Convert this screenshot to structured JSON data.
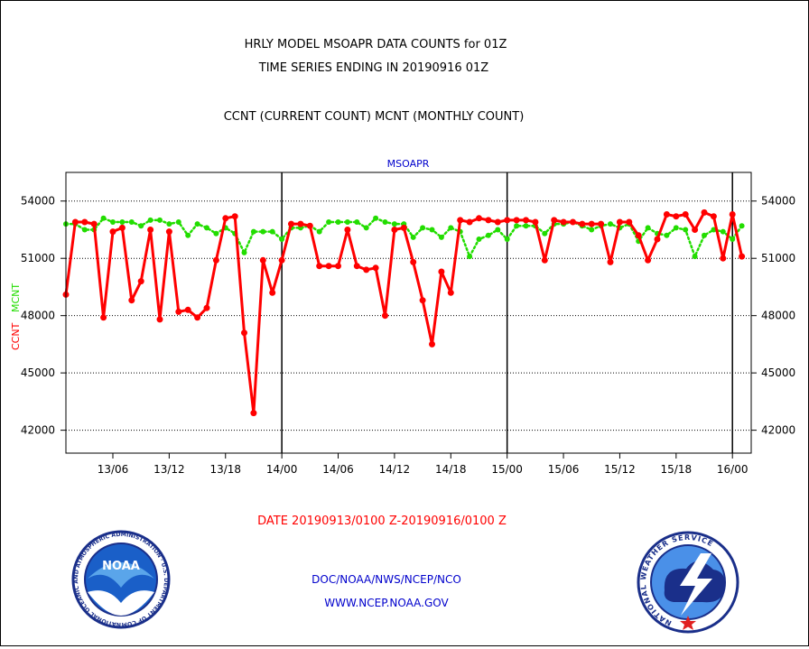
{
  "header": {
    "line1": "HRLY MODEL MSOAPR DATA COUNTS for 01Z",
    "line2": "TIME SERIES ENDING IN 20190916 01Z",
    "line3": "CCNT (CURRENT COUNT) MCNT (MONTHLY COUNT)"
  },
  "footer": {
    "date_range": "DATE 20190913/0100 Z-20190916/0100 Z",
    "org": "DOC/NOAA/NWS/NCEP/NCO",
    "url": "WWW.NCEP.NOAA.GOV"
  },
  "logos": {
    "left_text": "NOAA",
    "left_ring": "NATIONAL OCEANIC AND ATMOSPHERIC ADMINISTRATION · U.S. DEPARTMENT OF COMMERCE ·",
    "right_ring": "NATIONAL WEATHER SERVICE"
  },
  "colors": {
    "ccnt": "#ff0000",
    "mcnt": "#22dd00",
    "axis": "#000000",
    "title": "#0000cc",
    "footer": "#0000cc",
    "date": "#ff0000"
  },
  "chart_data": {
    "type": "line",
    "title": "MSOAPR",
    "ylabel_left_red": "CCNT",
    "ylabel_left_green": "MCNT",
    "ylim": [
      40800,
      55500
    ],
    "yticks": [
      42000,
      45000,
      48000,
      51000,
      54000
    ],
    "ytick_labels": [
      "42000",
      "45000",
      "48000",
      "51000",
      "54000"
    ],
    "x_hour_range": [
      0,
      73
    ],
    "xticks_hours": [
      5,
      11,
      17,
      23,
      29,
      35,
      41,
      47,
      53,
      59,
      65,
      71
    ],
    "xtick_labels": [
      "13/06",
      "13/12",
      "13/18",
      "14/00",
      "14/06",
      "14/12",
      "14/18",
      "15/00",
      "15/06",
      "15/12",
      "15/18",
      "16/00"
    ],
    "day_boundaries_hours": [
      23,
      47,
      71
    ],
    "series": [
      {
        "name": "CCNT",
        "line_style": "solid",
        "values": [
          49100,
          52900,
          52900,
          52800,
          47900,
          52400,
          52600,
          48800,
          49800,
          52500,
          47800,
          52400,
          48200,
          48300,
          47900,
          48400,
          50900,
          53100,
          53200,
          47100,
          42900,
          50900,
          49200,
          50900,
          52800,
          52800,
          52700,
          50600,
          50600,
          50600,
          52500,
          50600,
          50400,
          50500,
          48000,
          52500,
          52600,
          50800,
          48800,
          46500,
          50300,
          49200,
          53000,
          52900,
          53100,
          53000,
          52900,
          53000,
          53000,
          53000,
          52900,
          50900,
          53000,
          52900,
          52900,
          52800,
          52800,
          52800,
          50800,
          52900,
          52900,
          52200,
          50900,
          52000,
          53300,
          53200,
          53300,
          52500,
          53400,
          53200,
          51000,
          53300,
          51100
        ]
      },
      {
        "name": "MCNT",
        "line_style": "dotted",
        "values": [
          52800,
          52800,
          52500,
          52500,
          53100,
          52900,
          52900,
          52900,
          52700,
          53000,
          53000,
          52800,
          52900,
          52200,
          52800,
          52600,
          52300,
          52600,
          52300,
          51300,
          52400,
          52400,
          52400,
          52000,
          52600,
          52600,
          52700,
          52400,
          52900,
          52900,
          52900,
          52900,
          52600,
          53100,
          52900,
          52800,
          52800,
          52100,
          52600,
          52500,
          52100,
          52600,
          52400,
          51100,
          52000,
          52200,
          52500,
          52000,
          52700,
          52700,
          52700,
          52300,
          52800,
          52800,
          52900,
          52700,
          52500,
          52700,
          52800,
          52600,
          52800,
          51900,
          52600,
          52300,
          52200,
          52600,
          52500,
          51100,
          52200,
          52500,
          52400,
          52000,
          52700
        ]
      }
    ]
  }
}
